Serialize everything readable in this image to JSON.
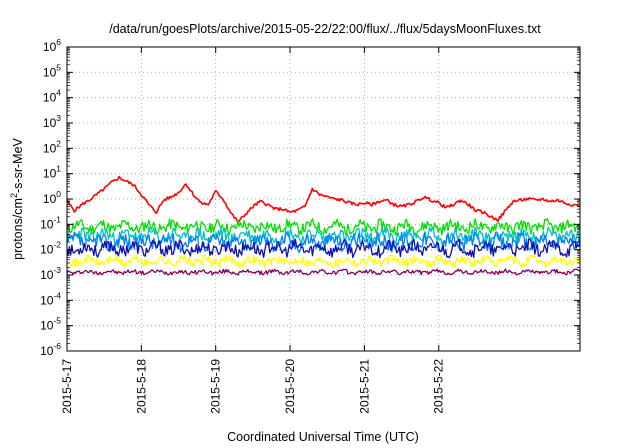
{
  "chart_data": {
    "type": "line",
    "title": "/data/run/goesPlots/archive/2015-05-22/22:00/flux/../flux/5daysMoonFluxes.txt",
    "xlabel": "Coordinated Universal Time (UTC)",
    "ylabel": {
      "base": "protons/cm",
      "sup": "2",
      "rest": "-s-sr-MeV"
    },
    "yscale": "log",
    "ylim": [
      1e-06,
      1000000.0
    ],
    "xlim": [
      0,
      6.9
    ],
    "x_ticks": [
      {
        "value": 0,
        "label": "2015-5-17"
      },
      {
        "value": 1,
        "label": "2015-5-18"
      },
      {
        "value": 2,
        "label": "2015-5-19"
      },
      {
        "value": 3,
        "label": "2015-5-20"
      },
      {
        "value": 4,
        "label": "2015-5-21"
      },
      {
        "value": 5,
        "label": "2015-5-22"
      }
    ],
    "y_ticks": [
      {
        "exp": -6,
        "label_base": "10",
        "label_exp": "-6"
      },
      {
        "exp": -5,
        "label_base": "10",
        "label_exp": "-5"
      },
      {
        "exp": -4,
        "label_base": "10",
        "label_exp": "-4"
      },
      {
        "exp": -3,
        "label_base": "10",
        "label_exp": "-3"
      },
      {
        "exp": -2,
        "label_base": "10",
        "label_exp": "-2"
      },
      {
        "exp": -1,
        "label_base": "10",
        "label_exp": "-1"
      },
      {
        "exp": 0,
        "label_base": "10",
        "label_exp": "0"
      },
      {
        "exp": 1,
        "label_base": "10",
        "label_exp": "1"
      },
      {
        "exp": 2,
        "label_base": "10",
        "label_exp": "2"
      },
      {
        "exp": 3,
        "label_base": "10",
        "label_exp": "3"
      },
      {
        "exp": 4,
        "label_base": "10",
        "label_exp": "4"
      },
      {
        "exp": 5,
        "label_base": "10",
        "label_exp": "5"
      },
      {
        "exp": 6,
        "label_base": "10",
        "label_exp": "6"
      }
    ],
    "grid": true,
    "legend": "none",
    "series": [
      {
        "color": "#ff0000",
        "x": [
          0.0,
          0.1,
          0.2,
          0.3,
          0.4,
          0.5,
          0.6,
          0.7,
          0.8,
          0.9,
          1.0,
          1.1,
          1.2,
          1.3,
          1.4,
          1.5,
          1.6,
          1.7,
          1.8,
          1.9,
          2.0,
          2.1,
          2.2,
          2.3,
          2.4,
          2.5,
          2.6,
          2.7,
          2.8,
          2.9,
          3.0,
          3.1,
          3.2,
          3.3,
          3.4,
          3.5,
          3.6,
          3.7,
          3.8,
          3.9,
          4.0,
          4.1,
          4.2,
          4.3,
          4.4,
          4.5,
          4.6,
          4.7,
          4.8,
          4.9,
          5.0,
          5.1,
          5.2,
          5.3,
          5.4,
          5.5,
          5.6,
          5.7,
          5.8,
          5.9,
          6.0,
          6.1,
          6.2,
          6.3,
          6.4,
          6.5,
          6.6,
          6.7,
          6.8,
          6.9
        ],
        "y": [
          0.8,
          0.35,
          0.6,
          0.9,
          1.5,
          2.5,
          4.5,
          7.0,
          5.0,
          3.5,
          1.5,
          0.6,
          0.3,
          0.9,
          1.2,
          1.8,
          4.0,
          1.5,
          0.7,
          0.6,
          2.0,
          1.0,
          0.3,
          0.12,
          0.25,
          0.5,
          0.8,
          0.6,
          0.4,
          0.4,
          0.3,
          0.35,
          0.5,
          2.5,
          1.5,
          1.2,
          1.0,
          0.9,
          0.7,
          0.6,
          0.7,
          0.6,
          0.8,
          0.9,
          0.6,
          0.5,
          0.6,
          0.8,
          1.2,
          0.9,
          0.7,
          0.45,
          0.6,
          0.9,
          0.6,
          0.35,
          0.3,
          0.2,
          0.15,
          0.35,
          0.8,
          0.9,
          1.0,
          0.9,
          1.0,
          0.8,
          0.9,
          0.7,
          0.6,
          0.55
        ]
      },
      {
        "color": "#00e000",
        "base": 0.08,
        "amp": 0.22,
        "seed": 11
      },
      {
        "color": "#00c0c0",
        "base": 0.035,
        "amp": 0.25,
        "seed": 23
      },
      {
        "color": "#0080ff",
        "base": 0.02,
        "amp": 0.28,
        "seed": 37
      },
      {
        "color": "#1010b0",
        "base": 0.011,
        "amp": 0.25,
        "seed": 53
      },
      {
        "color": "#ffff00",
        "base": 0.0035,
        "amp": 0.18,
        "seed": 71
      },
      {
        "color": "#800060",
        "base": 0.0013,
        "amp": 0.08,
        "seed": 97
      }
    ]
  }
}
